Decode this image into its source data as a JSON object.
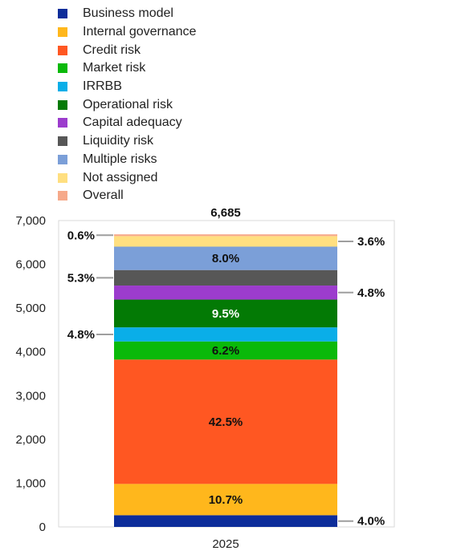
{
  "chart_data": {
    "type": "bar",
    "stacked": true,
    "categories": [
      "2025"
    ],
    "total_label": "6,685",
    "ylim": [
      0,
      7000
    ],
    "yticks": [
      "0",
      "1,000",
      "2,000",
      "3,000",
      "4,000",
      "5,000",
      "6,000",
      "7,000"
    ],
    "grid": false,
    "legend_position": "top",
    "series": [
      {
        "name": "Business model",
        "share": 4.0,
        "label": "4.0%",
        "color": "#0d2d9a",
        "label_side": "right",
        "label_color": "#111111"
      },
      {
        "name": "Internal governance",
        "share": 10.7,
        "label": "10.7%",
        "color": "#ffb71c",
        "label_side": "inside",
        "label_color": "#111111"
      },
      {
        "name": "Credit risk",
        "share": 42.5,
        "label": "42.5%",
        "color": "#ff5722",
        "label_side": "inside",
        "label_color": "#111111"
      },
      {
        "name": "Market risk",
        "share": 6.2,
        "label": "6.2%",
        "color": "#0ab90a",
        "label_side": "inside",
        "label_color": "#111111"
      },
      {
        "name": "IRRBB",
        "share": 4.8,
        "label": "4.8%",
        "color": "#0aaee8",
        "label_side": "left",
        "label_color": "#111111"
      },
      {
        "name": "Operational risk",
        "share": 9.5,
        "label": "9.5%",
        "color": "#037a05",
        "label_side": "inside",
        "label_color": "#ffffff"
      },
      {
        "name": "Capital adequacy",
        "share": 4.8,
        "label": "4.8%",
        "color": "#9c3ccd",
        "label_side": "right",
        "label_color": "#111111"
      },
      {
        "name": "Liquidity risk",
        "share": 5.3,
        "label": "5.3%",
        "color": "#575757",
        "label_side": "left",
        "label_color": "#111111"
      },
      {
        "name": "Multiple risks",
        "share": 8.0,
        "label": "8.0%",
        "color": "#7b9fd8",
        "label_side": "inside",
        "label_color": "#111111"
      },
      {
        "name": "Not assigned",
        "share": 3.6,
        "label": "3.6%",
        "color": "#ffdf80",
        "label_side": "right",
        "label_color": "#111111"
      },
      {
        "name": "Overall",
        "share": 0.6,
        "label": "0.6%",
        "color": "#f6a98a",
        "label_side": "left",
        "label_color": "#111111"
      }
    ]
  }
}
